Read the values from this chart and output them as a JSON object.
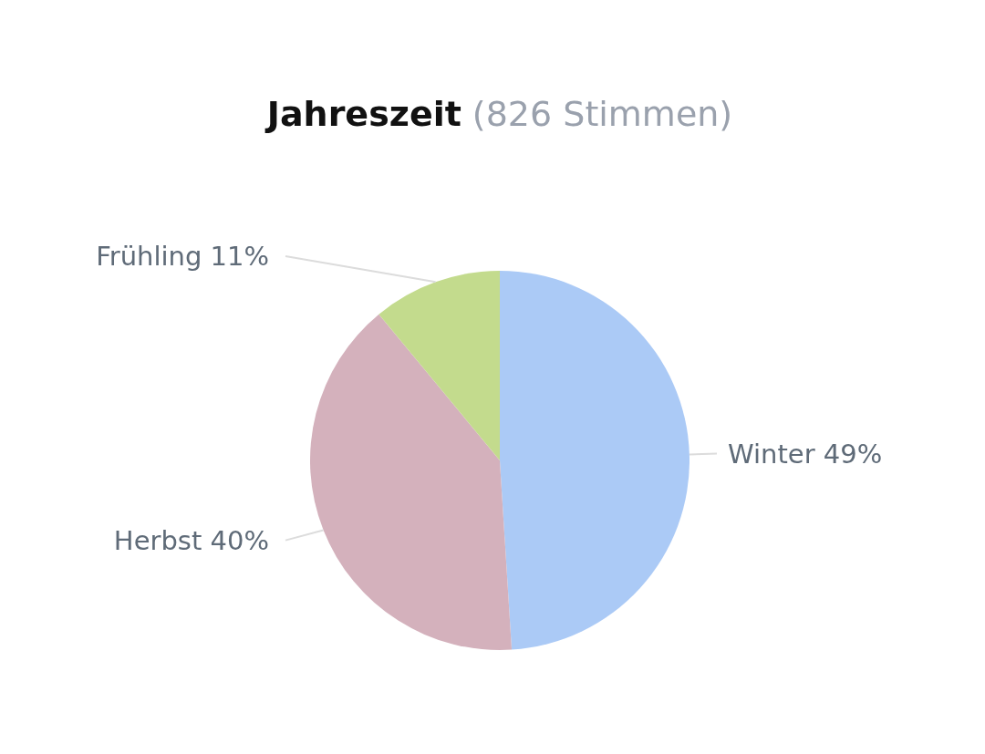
{
  "chart_data": {
    "type": "pie",
    "title": "Jahreszeit",
    "subtitle": "(826 Stimmen)",
    "categories": [
      "Winter",
      "Herbst",
      "Frühling"
    ],
    "values": [
      49,
      40,
      11
    ],
    "value_labels": [
      "49%",
      "40%",
      "11%"
    ],
    "colors": [
      "#abcaf6",
      "#d4b1bc",
      "#c3db8d"
    ],
    "legend": false
  }
}
